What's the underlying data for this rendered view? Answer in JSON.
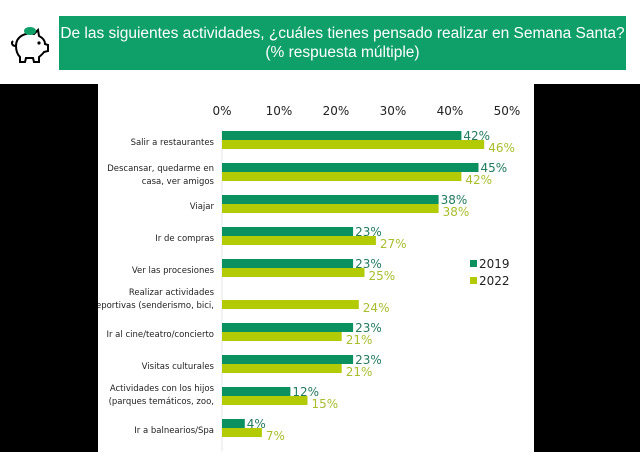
{
  "header": {
    "title_line1": "De las siguientes actividades, ¿cuáles tienes pensado realizar en Semana  Santa?",
    "title_line2": "(% respuesta múltiple)",
    "icon": "piggy-bank-icon"
  },
  "colors": {
    "header_bg": "#0fa06a",
    "series_2019": "#0b9160",
    "series_2022": "#b3ca06",
    "label_2019": "#237a5c",
    "label_2022": "#a9bd2d"
  },
  "chart_data": {
    "type": "bar",
    "orientation": "horizontal",
    "categories": [
      [
        "Salir a restaurantes"
      ],
      [
        "Descansar, quedarme en",
        "casa, ver amigos"
      ],
      [
        "Viajar"
      ],
      [
        "Ir de compras"
      ],
      [
        "Ver las procesiones"
      ],
      [
        "Realizar actividades",
        "deportivas (senderismo, bici,"
      ],
      [
        "Ir al cine/teatro/concierto"
      ],
      [
        "Visitas culturales"
      ],
      [
        "Actividades con los hijos",
        "(parques temáticos, zoo,"
      ],
      [
        "Ir a balnearios/Spa"
      ]
    ],
    "series": [
      {
        "name": "2019",
        "values": [
          42,
          45,
          38,
          23,
          23,
          null,
          23,
          23,
          12,
          4
        ]
      },
      {
        "name": "2022",
        "values": [
          46,
          42,
          38,
          27,
          25,
          24,
          21,
          21,
          15,
          7
        ]
      }
    ],
    "xlim": [
      0,
      50
    ],
    "xticks": [
      "0%",
      "10%",
      "20%",
      "30%",
      "40%",
      "50%"
    ],
    "xaxis_position": "top",
    "grid": false,
    "legend_position": "right"
  }
}
